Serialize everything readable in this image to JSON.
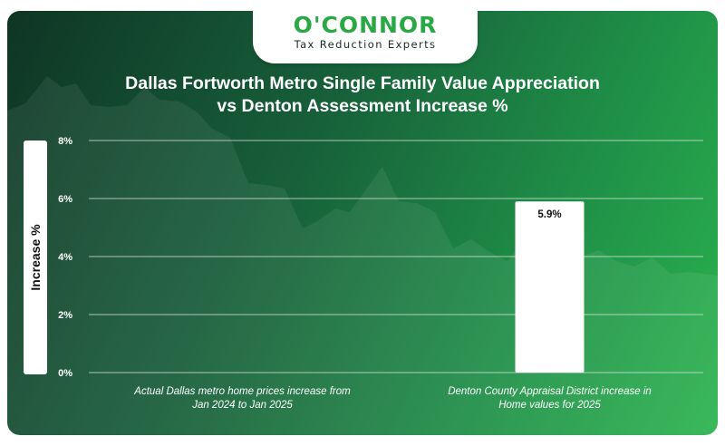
{
  "logo": {
    "name": "O'CONNOR",
    "tagline": "Tax Reduction Experts"
  },
  "colors": {
    "bar": "#ffffff",
    "value_label": "#111111",
    "axis_text": "#ffffff",
    "grid": "#d9e8de",
    "background_dark": "#0f3525",
    "background_light": "#2bb44f"
  },
  "chart_data": {
    "type": "bar",
    "title_line1": "Dallas Fortworth Metro Single Family Value Appreciation",
    "title_line2": "vs Denton Assessment Increase %",
    "ylabel": "Increase %",
    "ylim": [
      0,
      8
    ],
    "yticks": [
      0,
      2,
      4,
      6,
      8
    ],
    "ytick_labels": [
      "0%",
      "2%",
      "4%",
      "6%",
      "8%"
    ],
    "categories": [
      "Actual Dallas metro home prices increase from Jan 2024 to Jan 2025",
      "Denton County Appraisal District increase in Home values for 2025"
    ],
    "category_lines": [
      [
        "Actual Dallas metro home prices increase from",
        "Jan 2024 to Jan 2025"
      ],
      [
        "Denton County Appraisal District increase in",
        "Home values for 2025"
      ]
    ],
    "values": [
      null,
      5.9
    ],
    "value_labels": [
      "",
      "5.9%"
    ],
    "grid": true,
    "legend": "none"
  }
}
